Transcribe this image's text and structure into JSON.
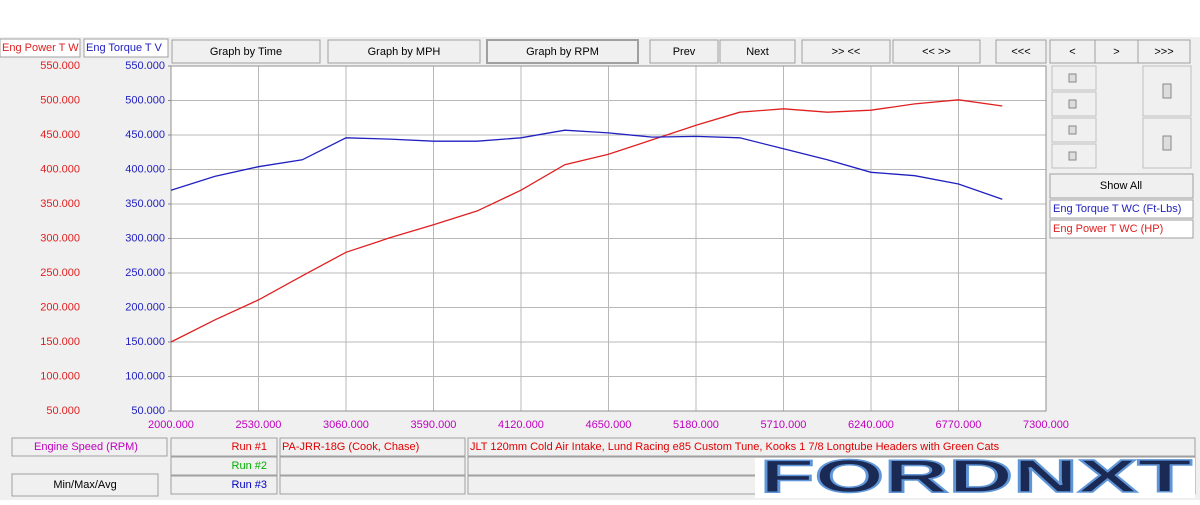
{
  "ui": {
    "tabs": [
      "Eng Power T W",
      "Eng Torque T V"
    ],
    "buttons": [
      "Graph by Time",
      "Graph by MPH",
      "Graph by RPM",
      "Prev",
      "Next",
      ">> <<",
      "<< >>",
      "<<<",
      "<",
      ">",
      ">>>"
    ],
    "show_all": "Show All",
    "min_max_avg": "Min/Max/Avg",
    "runs": [
      {
        "label": "Run #1",
        "color": "#e00000",
        "name": "PA-JRR-18G (Cook, Chase)",
        "description": "JLT 120mm Cold Air Intake, Lund Racing e85 Custom Tune, Kooks 1 7/8 Longtube Headers with Green Cats"
      },
      {
        "label": "Run #2",
        "color": "#00b000"
      },
      {
        "label": "Run #3",
        "color": "#0000c0"
      }
    ],
    "logo": "FORDNXT"
  },
  "chart_data": {
    "type": "line",
    "x_label": "Engine Speed (RPM)",
    "x": [
      2000,
      2265,
      2530,
      2795,
      3060,
      3325,
      3590,
      3855,
      4120,
      4385,
      4650,
      4915,
      5180,
      5445,
      5710,
      5975,
      6240,
      6505,
      6770,
      7035
    ],
    "series": [
      {
        "name": "Eng Power T WC (HP)",
        "color": "#e02020",
        "axis": "y",
        "values": [
          150,
          182,
          211,
          246,
          280,
          301,
          320,
          340,
          370,
          407,
          422,
          443,
          464,
          483,
          488,
          483,
          486,
          495,
          501,
          492
        ]
      },
      {
        "name": "Eng Torque T WC (Ft-Lbs)",
        "color": "#2020c0",
        "axis": "y2",
        "values": [
          370,
          390,
          404,
          414,
          446,
          444,
          441,
          441,
          446,
          457,
          453,
          447,
          448,
          446,
          430,
          414,
          396,
          391,
          379,
          357
        ]
      }
    ],
    "xlim": [
      2000,
      7300
    ],
    "xticks": [
      {
        "value": 2000,
        "label": "2000.000"
      },
      {
        "value": 2530,
        "label": "2530.000"
      },
      {
        "value": 3060,
        "label": "3060.000"
      },
      {
        "value": 3590,
        "label": "3590.000"
      },
      {
        "value": 4120,
        "label": "4120.000"
      },
      {
        "value": 4650,
        "label": "4650.000"
      },
      {
        "value": 5180,
        "label": "5180.000"
      },
      {
        "value": 5710,
        "label": "5710.000"
      },
      {
        "value": 6240,
        "label": "6240.000"
      },
      {
        "value": 6770,
        "label": "6770.000"
      },
      {
        "value": 7300,
        "label": "7300.000"
      }
    ],
    "ylim": [
      50,
      550
    ],
    "yticks": [
      {
        "value": 50,
        "label": "50.000"
      },
      {
        "value": 100,
        "label": "100.000"
      },
      {
        "value": 150,
        "label": "150.000"
      },
      {
        "value": 200,
        "label": "200.000"
      },
      {
        "value": 250,
        "label": "250.000"
      },
      {
        "value": 300,
        "label": "300.000"
      },
      {
        "value": 350,
        "label": "350.000"
      },
      {
        "value": 400,
        "label": "400.000"
      },
      {
        "value": 450,
        "label": "450.000"
      },
      {
        "value": 500,
        "label": "500.000"
      },
      {
        "value": 550,
        "label": "550.000"
      }
    ],
    "y2lim": [
      50,
      550
    ],
    "y2ticks": [
      {
        "value": 50,
        "label": "50.000"
      },
      {
        "value": 100,
        "label": "100.000"
      },
      {
        "value": 150,
        "label": "150.000"
      },
      {
        "value": 200,
        "label": "200.000"
      },
      {
        "value": 250,
        "label": "250.000"
      },
      {
        "value": 300,
        "label": "300.000"
      },
      {
        "value": 350,
        "label": "350.000"
      },
      {
        "value": 400,
        "label": "400.000"
      },
      {
        "value": 450,
        "label": "450.000"
      },
      {
        "value": 500,
        "label": "500.000"
      },
      {
        "value": 550,
        "label": "550.000"
      }
    ],
    "grid": true,
    "xtick_color": "#c000c0"
  }
}
